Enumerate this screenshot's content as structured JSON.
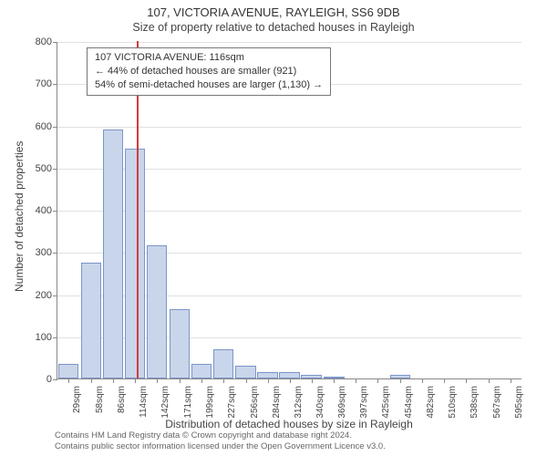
{
  "title": "107, VICTORIA AVENUE, RAYLEIGH, SS6 9DB",
  "subtitle": "Size of property relative to detached houses in Rayleigh",
  "y_axis_label": "Number of detached properties",
  "x_axis_label": "Distribution of detached houses by size in Rayleigh",
  "chart": {
    "type": "histogram",
    "ylim": [
      0,
      800
    ],
    "ytick_step": 100,
    "y_ticks": [
      0,
      100,
      200,
      300,
      400,
      500,
      600,
      700,
      800
    ],
    "grid_color": "#888888",
    "grid_opacity": 0.25,
    "background_color": "#ffffff",
    "bar_fill": "#c9d5ea",
    "bar_stroke": "#7a96c9",
    "marker_color": "#d43b3b",
    "marker_x_value": 116,
    "x_domain": [
      15,
      610
    ],
    "bars": [
      {
        "x_label": "29sqm",
        "x": 29,
        "count": 35
      },
      {
        "x_label": "58sqm",
        "x": 58,
        "count": 275
      },
      {
        "x_label": "86sqm",
        "x": 86,
        "count": 590
      },
      {
        "x_label": "114sqm",
        "x": 114,
        "count": 545
      },
      {
        "x_label": "142sqm",
        "x": 142,
        "count": 315
      },
      {
        "x_label": "171sqm",
        "x": 171,
        "count": 165
      },
      {
        "x_label": "199sqm",
        "x": 199,
        "count": 35
      },
      {
        "x_label": "227sqm",
        "x": 227,
        "count": 70
      },
      {
        "x_label": "256sqm",
        "x": 256,
        "count": 30
      },
      {
        "x_label": "284sqm",
        "x": 284,
        "count": 15
      },
      {
        "x_label": "312sqm",
        "x": 312,
        "count": 15
      },
      {
        "x_label": "340sqm",
        "x": 340,
        "count": 8
      },
      {
        "x_label": "369sqm",
        "x": 369,
        "count": 5
      },
      {
        "x_label": "397sqm",
        "x": 397,
        "count": 0
      },
      {
        "x_label": "425sqm",
        "x": 425,
        "count": 0
      },
      {
        "x_label": "454sqm",
        "x": 454,
        "count": 8
      },
      {
        "x_label": "482sqm",
        "x": 482,
        "count": 0
      },
      {
        "x_label": "510sqm",
        "x": 510,
        "count": 0
      },
      {
        "x_label": "538sqm",
        "x": 538,
        "count": 0
      },
      {
        "x_label": "567sqm",
        "x": 567,
        "count": 0
      },
      {
        "x_label": "595sqm",
        "x": 595,
        "count": 0
      }
    ]
  },
  "annotation": {
    "lines": [
      "107 VICTORIA AVENUE: 116sqm",
      "← 44% of detached houses are smaller (921)",
      "54% of semi-detached houses are larger (1,130) →"
    ],
    "border_color": "#777777",
    "bg_color": "#ffffff"
  },
  "footer": {
    "line1": "Contains HM Land Registry data © Crown copyright and database right 2024.",
    "line2": "Contains public sector information licensed under the Open Government Licence v3.0."
  }
}
